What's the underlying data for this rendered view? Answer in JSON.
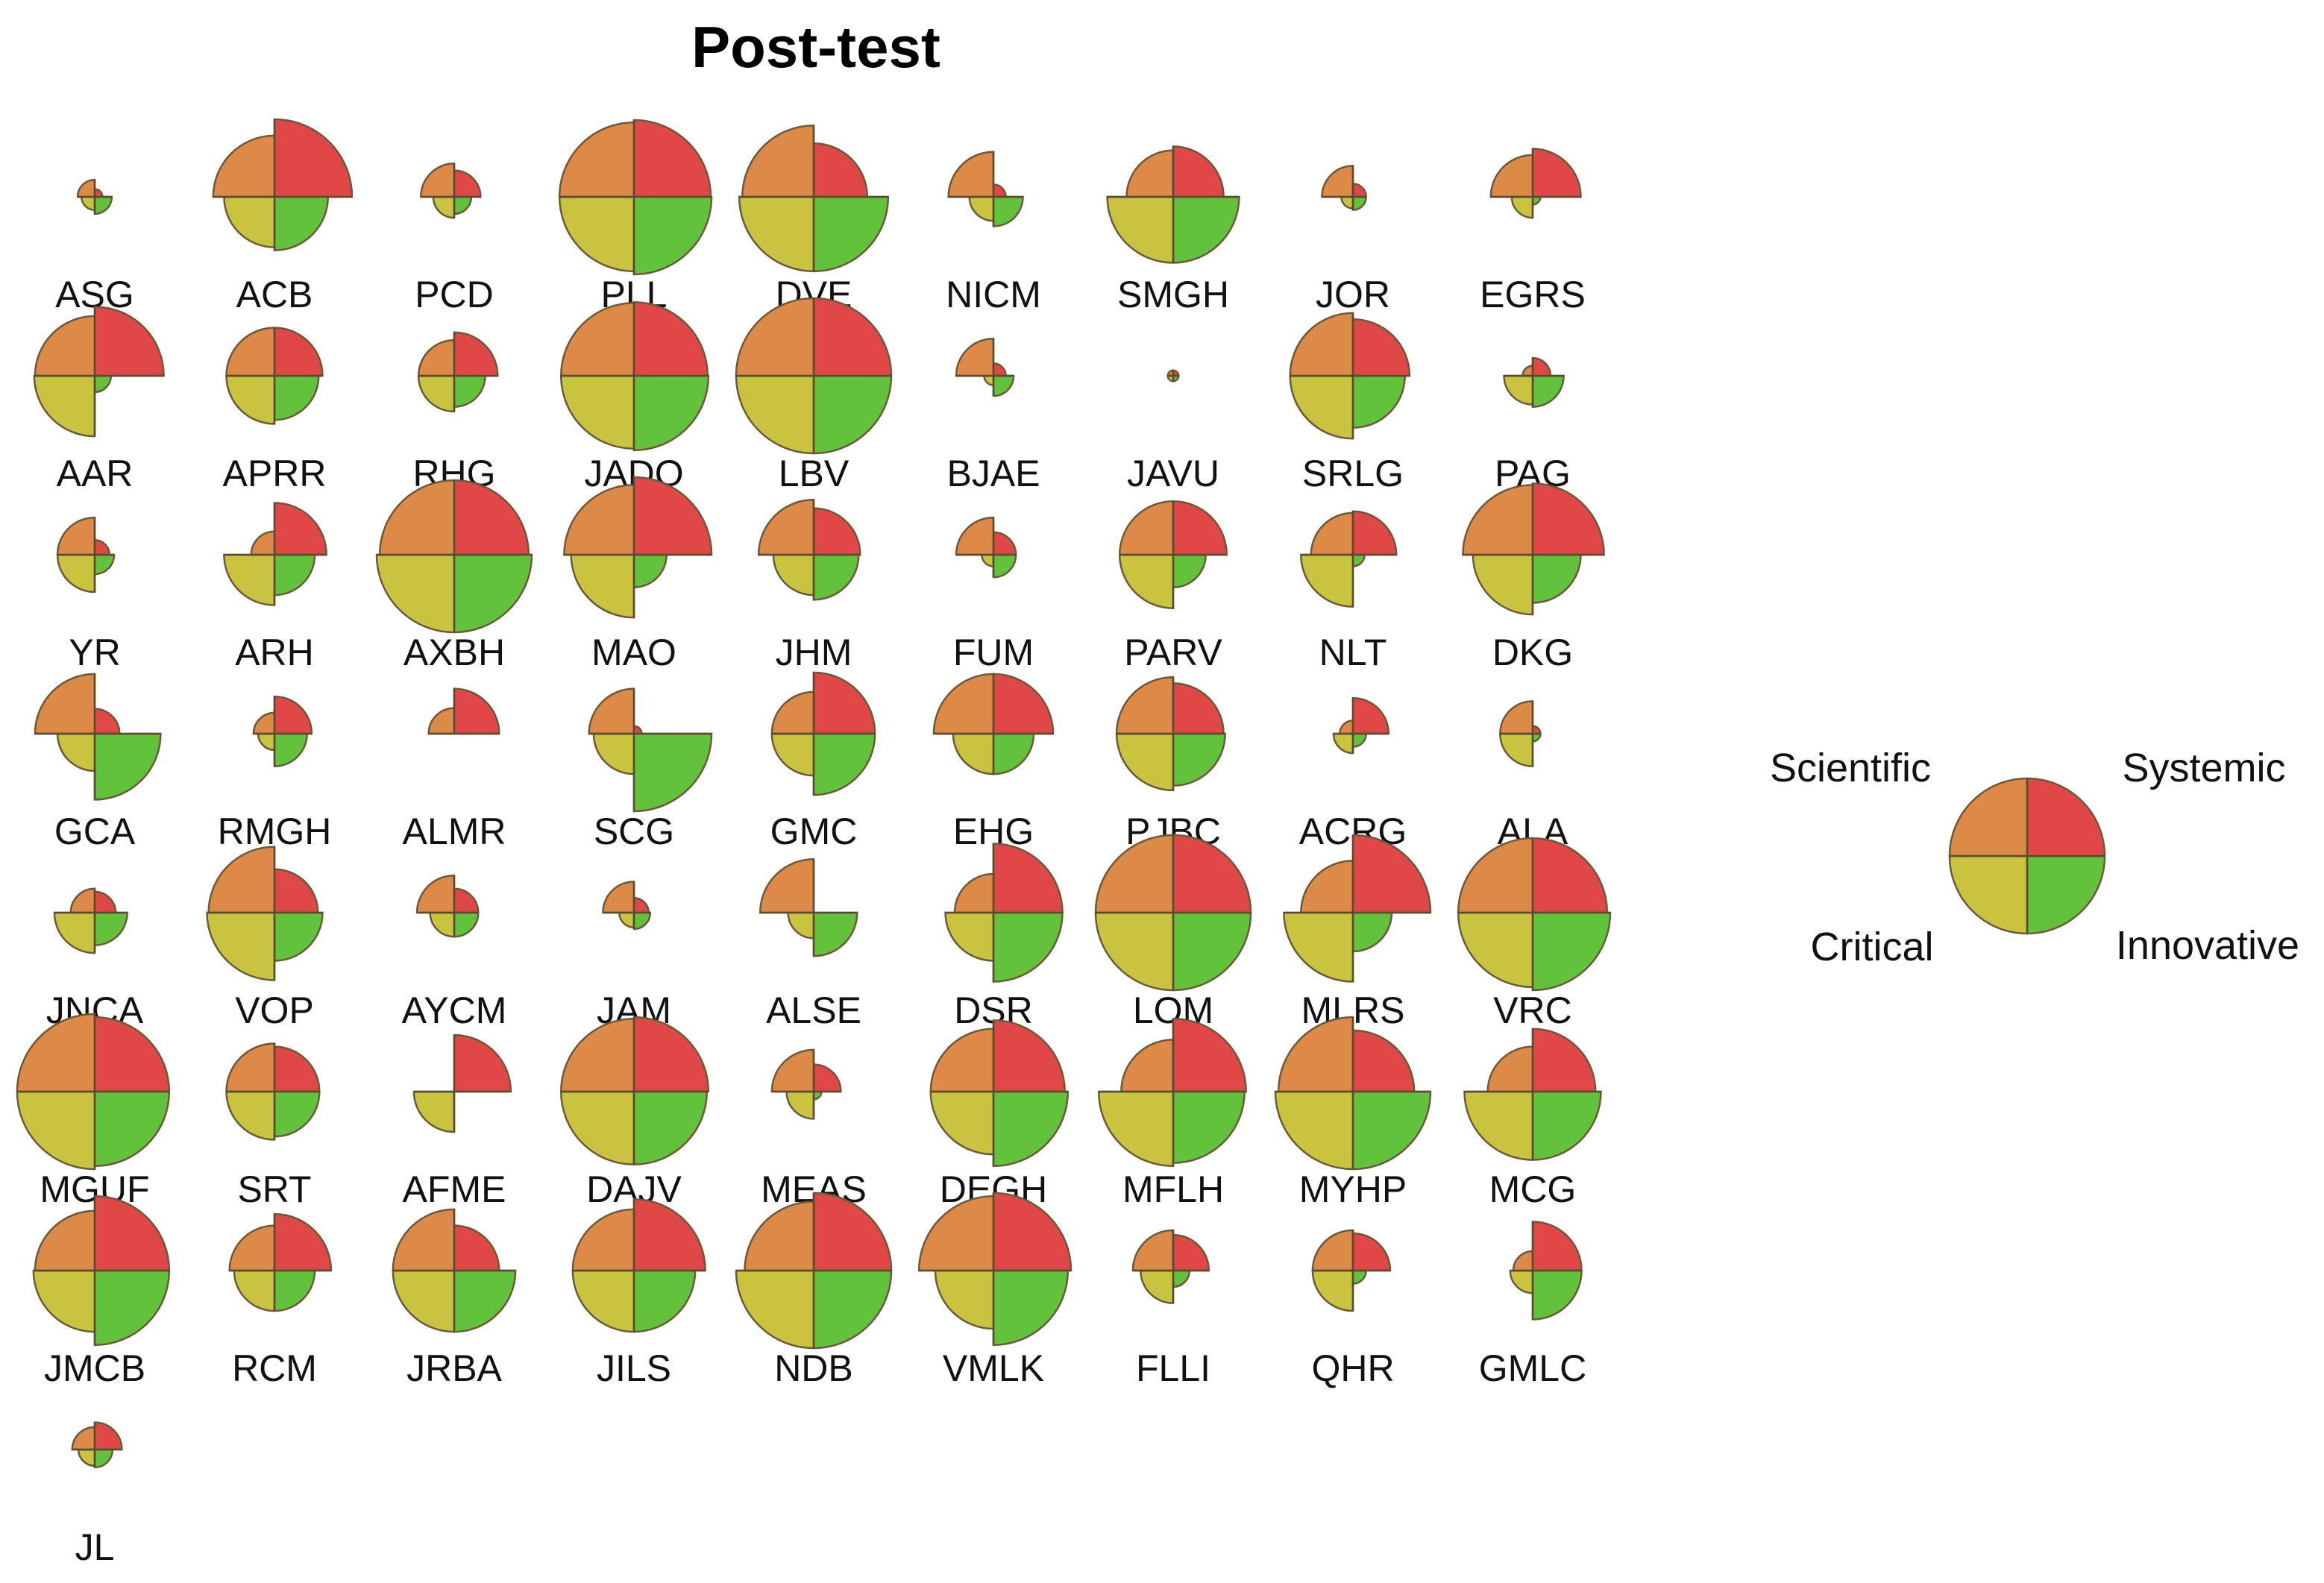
{
  "chart_data": {
    "type": "glyph-grid",
    "title": "Post-test",
    "quadrant_order": [
      "Systemic",
      "Innovative",
      "Critical",
      "Scientific"
    ],
    "colors": {
      "Systemic": "#e04848",
      "Innovative": "#62c23c",
      "Critical": "#c8c440",
      "Scientific": "#dd8a48",
      "outline": "#6b5a3a"
    },
    "legend": {
      "Scientific": "Scientific",
      "Systemic": "Systemic",
      "Critical": "Critical",
      "Innovative": "Innovative"
    },
    "columns": 9,
    "value_max": 1.0,
    "students": [
      {
        "label": "ASG",
        "values": [
          0.1,
          0.22,
          0.17,
          0.22
        ]
      },
      {
        "label": "ACB",
        "values": [
          1.0,
          0.69,
          0.65,
          0.79
        ]
      },
      {
        "label": "PCD",
        "values": [
          0.34,
          0.22,
          0.27,
          0.43
        ]
      },
      {
        "label": "PLL",
        "values": [
          0.99,
          1.0,
          0.96,
          0.96
        ]
      },
      {
        "label": "DVE",
        "values": [
          0.69,
          0.96,
          0.96,
          0.92
        ]
      },
      {
        "label": "NICM",
        "values": [
          0.16,
          0.38,
          0.31,
          0.58
        ]
      },
      {
        "label": "SMGH",
        "values": [
          0.65,
          0.85,
          0.85,
          0.6
        ]
      },
      {
        "label": "JOR",
        "values": [
          0.17,
          0.17,
          0.15,
          0.4
        ]
      },
      {
        "label": "EGRS",
        "values": [
          0.62,
          0.1,
          0.27,
          0.54
        ]
      },
      {
        "label": "AAR",
        "values": [
          0.89,
          0.21,
          0.78,
          0.77
        ]
      },
      {
        "label": "APRR",
        "values": [
          0.62,
          0.57,
          0.62,
          0.62
        ]
      },
      {
        "label": "RHG",
        "values": [
          0.56,
          0.4,
          0.46,
          0.46
        ]
      },
      {
        "label": "JADQ",
        "values": [
          0.95,
          0.96,
          0.94,
          0.94
        ]
      },
      {
        "label": "LBV",
        "values": [
          1.0,
          1.0,
          1.0,
          1.0
        ]
      },
      {
        "label": "BJAE",
        "values": [
          0.16,
          0.26,
          0.12,
          0.48
        ]
      },
      {
        "label": "JAVU",
        "values": [
          0.07,
          0.07,
          0.07,
          0.07
        ]
      },
      {
        "label": "SRLG",
        "values": [
          0.73,
          0.67,
          0.81,
          0.81
        ]
      },
      {
        "label": "PAG",
        "values": [
          0.23,
          0.4,
          0.37,
          0.13
        ]
      },
      {
        "label": "YR",
        "values": [
          0.19,
          0.25,
          0.48,
          0.48
        ]
      },
      {
        "label": "ARH",
        "values": [
          0.67,
          0.52,
          0.65,
          0.3
        ]
      },
      {
        "label": "AXBH",
        "values": [
          0.96,
          1.0,
          1.0,
          0.96
        ]
      },
      {
        "label": "MAO",
        "values": [
          1.0,
          0.42,
          0.81,
          0.9
        ]
      },
      {
        "label": "JHM",
        "values": [
          0.6,
          0.58,
          0.52,
          0.71
        ]
      },
      {
        "label": "FUM",
        "values": [
          0.29,
          0.29,
          0.15,
          0.48
        ]
      },
      {
        "label": "PARV",
        "values": [
          0.69,
          0.42,
          0.69,
          0.69
        ]
      },
      {
        "label": "NLT",
        "values": [
          0.56,
          0.15,
          0.67,
          0.54
        ]
      },
      {
        "label": "DKG",
        "values": [
          0.92,
          0.62,
          0.77,
          0.9
        ]
      },
      {
        "label": "GCA",
        "values": [
          0.32,
          0.85,
          0.48,
          0.77
        ]
      },
      {
        "label": "RMGH",
        "values": [
          0.48,
          0.42,
          0.21,
          0.27
        ]
      },
      {
        "label": "ALMR",
        "values": [
          0.58,
          0.0,
          0.0,
          0.33
        ]
      },
      {
        "label": "SCG",
        "values": [
          0.1,
          1.0,
          0.52,
          0.58
        ]
      },
      {
        "label": "GMC",
        "values": [
          0.79,
          0.79,
          0.54,
          0.54
        ]
      },
      {
        "label": "EHG",
        "values": [
          0.77,
          0.52,
          0.52,
          0.77
        ]
      },
      {
        "label": "PJBC",
        "values": [
          0.65,
          0.67,
          0.73,
          0.73
        ]
      },
      {
        "label": "ACRG",
        "values": [
          0.46,
          0.17,
          0.25,
          0.17
        ]
      },
      {
        "label": "ALA",
        "values": [
          0.1,
          0.1,
          0.42,
          0.42
        ]
      },
      {
        "label": "JNCA",
        "values": [
          0.27,
          0.42,
          0.52,
          0.31
        ]
      },
      {
        "label": "VOP",
        "values": [
          0.56,
          0.62,
          0.87,
          0.85
        ]
      },
      {
        "label": "AYCM",
        "values": [
          0.31,
          0.31,
          0.31,
          0.48
        ]
      },
      {
        "label": "JAM",
        "values": [
          0.19,
          0.21,
          0.19,
          0.4
        ]
      },
      {
        "label": "ALSE",
        "values": [
          0.0,
          0.56,
          0.33,
          0.69
        ]
      },
      {
        "label": "DSR",
        "values": [
          0.89,
          0.89,
          0.62,
          0.5
        ]
      },
      {
        "label": "LOM",
        "values": [
          1.0,
          1.0,
          1.0,
          1.0
        ]
      },
      {
        "label": "MLRS",
        "values": [
          1.0,
          0.5,
          0.89,
          0.67
        ]
      },
      {
        "label": "VRC",
        "values": [
          0.96,
          1.0,
          0.96,
          0.96
        ]
      },
      {
        "label": "MGUF",
        "values": [
          0.96,
          0.96,
          1.0,
          1.0
        ]
      },
      {
        "label": "SRT",
        "values": [
          0.58,
          0.58,
          0.62,
          0.62
        ]
      },
      {
        "label": "AFME",
        "values": [
          0.73,
          0.0,
          0.52,
          0.0
        ]
      },
      {
        "label": "DAJV",
        "values": [
          0.96,
          0.94,
          0.94,
          0.94
        ]
      },
      {
        "label": "MEAS",
        "values": [
          0.35,
          0.1,
          0.35,
          0.54
        ]
      },
      {
        "label": "DEGH",
        "values": [
          0.92,
          0.96,
          0.81,
          0.81
        ]
      },
      {
        "label": "MFLH",
        "values": [
          0.94,
          0.92,
          0.96,
          0.67
        ]
      },
      {
        "label": "MYHP",
        "values": [
          0.79,
          1.0,
          1.0,
          0.96
        ]
      },
      {
        "label": "MCG",
        "values": [
          0.81,
          0.88,
          0.88,
          0.58
        ]
      },
      {
        "label": "JMCB",
        "values": [
          0.96,
          0.96,
          0.79,
          0.77
        ]
      },
      {
        "label": "RCM",
        "values": [
          0.73,
          0.52,
          0.52,
          0.58
        ]
      },
      {
        "label": "JRBA",
        "values": [
          0.58,
          0.79,
          0.79,
          0.79
        ]
      },
      {
        "label": "JILS",
        "values": [
          0.92,
          0.79,
          0.79,
          0.79
        ]
      },
      {
        "label": "NDB",
        "values": [
          1.0,
          1.0,
          1.0,
          0.89
        ]
      },
      {
        "label": "VMLK",
        "values": [
          1.0,
          0.96,
          0.75,
          0.96
        ]
      },
      {
        "label": "FLLI",
        "values": [
          0.46,
          0.21,
          0.42,
          0.52
        ]
      },
      {
        "label": "QHR",
        "values": [
          0.48,
          0.17,
          0.52,
          0.52
        ]
      },
      {
        "label": "GMLC",
        "values": [
          0.63,
          0.63,
          0.29,
          0.25
        ]
      },
      {
        "label": "JL",
        "values": [
          0.35,
          0.23,
          0.21,
          0.29
        ]
      }
    ]
  }
}
